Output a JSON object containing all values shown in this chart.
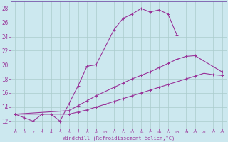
{
  "xlabel": "Windchill (Refroidissement éolien,°C)",
  "bg_color": "#cce8ef",
  "grid_color": "#aacccc",
  "line_color": "#993399",
  "spine_color": "#7755aa",
  "xlim": [
    -0.5,
    23.5
  ],
  "ylim": [
    11.0,
    29.0
  ],
  "yticks": [
    12,
    14,
    16,
    18,
    20,
    22,
    24,
    26,
    28
  ],
  "xticks": [
    0,
    1,
    2,
    3,
    4,
    5,
    6,
    7,
    8,
    9,
    10,
    11,
    12,
    13,
    14,
    15,
    16,
    17,
    18,
    19,
    20,
    21,
    22,
    23
  ],
  "s1_x": [
    0,
    1,
    2,
    3,
    4,
    5,
    6,
    7,
    8,
    9,
    10,
    11,
    12,
    13,
    14,
    15,
    16,
    17,
    18
  ],
  "s1_y": [
    13.0,
    12.5,
    12.0,
    13.0,
    13.0,
    12.0,
    14.5,
    17.0,
    19.8,
    20.0,
    22.5,
    25.0,
    26.6,
    27.2,
    28.0,
    27.5,
    27.8,
    27.2,
    24.2
  ],
  "s2_x": [
    0,
    6,
    7,
    8,
    9,
    10,
    11,
    12,
    13,
    14,
    15,
    16,
    17,
    18,
    19,
    20,
    23
  ],
  "s2_y": [
    13.0,
    13.5,
    14.2,
    14.9,
    15.6,
    16.2,
    16.8,
    17.4,
    18.0,
    18.5,
    19.0,
    19.6,
    20.2,
    20.8,
    21.2,
    21.3,
    19.0
  ],
  "s3_x": [
    0,
    6,
    7,
    8,
    9,
    10,
    11,
    12,
    13,
    14,
    15,
    16,
    17,
    18,
    19,
    20,
    21,
    22,
    23
  ],
  "s3_y": [
    13.0,
    13.0,
    13.3,
    13.6,
    14.0,
    14.4,
    14.8,
    15.2,
    15.6,
    16.0,
    16.4,
    16.8,
    17.2,
    17.6,
    18.0,
    18.4,
    18.8,
    18.6,
    18.5
  ]
}
